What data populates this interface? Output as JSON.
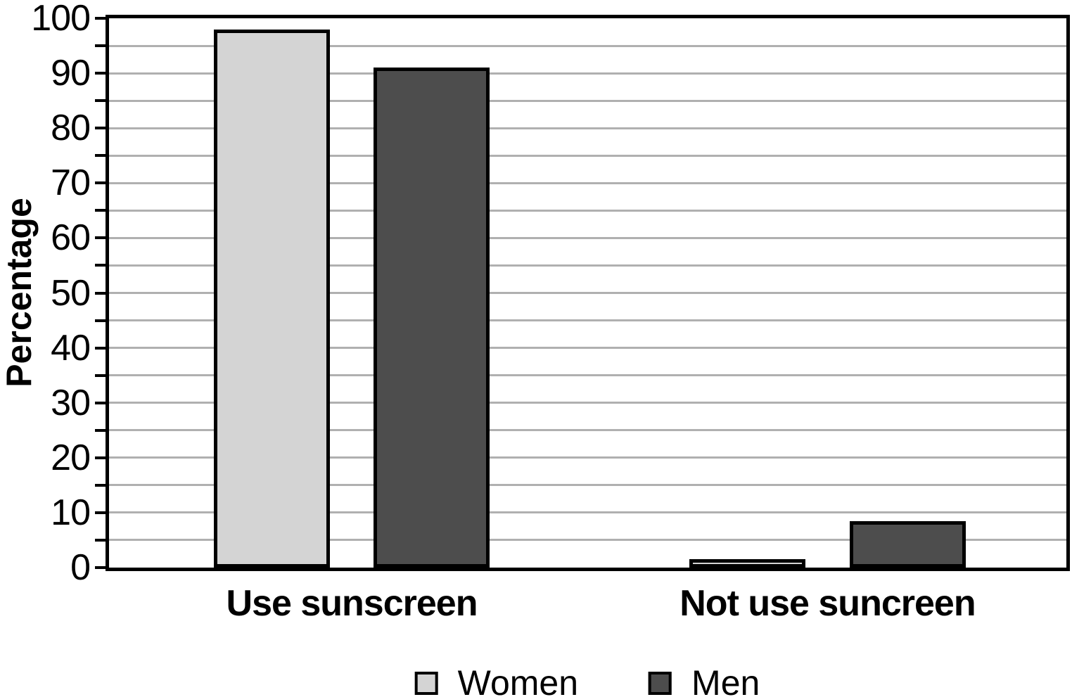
{
  "chart_data": {
    "type": "bar",
    "title": "",
    "xlabel": "",
    "ylabel": "Percentage",
    "categories": [
      "Use sunscreen",
      "Not use suncreen"
    ],
    "series": [
      {
        "name": "Women",
        "values": [
          98,
          1.5
        ],
        "color": "#d4d4d4"
      },
      {
        "name": "Men",
        "values": [
          91,
          8.5
        ],
        "color": "#4d4d4d"
      }
    ],
    "ylim": [
      0,
      100
    ],
    "ytick_labels": [
      "0",
      "10",
      "20",
      "30",
      "40",
      "50",
      "60",
      "70",
      "80",
      "90",
      "100"
    ],
    "ytick_label_values": [
      0,
      10,
      20,
      30,
      40,
      50,
      60,
      70,
      80,
      90,
      100
    ],
    "ytick_minor_step": 5,
    "grid": "horizontal, every 5 units",
    "legend_position": "bottom-center",
    "colors": {
      "grid": "#b0b0b0",
      "axis": "#000000",
      "bar_border": "#000000",
      "background": "#ffffff",
      "text": "#000000"
    },
    "layout": {
      "group_centers_fraction": [
        0.2535,
        0.7505
      ],
      "bar_width_fraction": 0.1212,
      "bar_half_gap_fraction": 0.023
    }
  }
}
